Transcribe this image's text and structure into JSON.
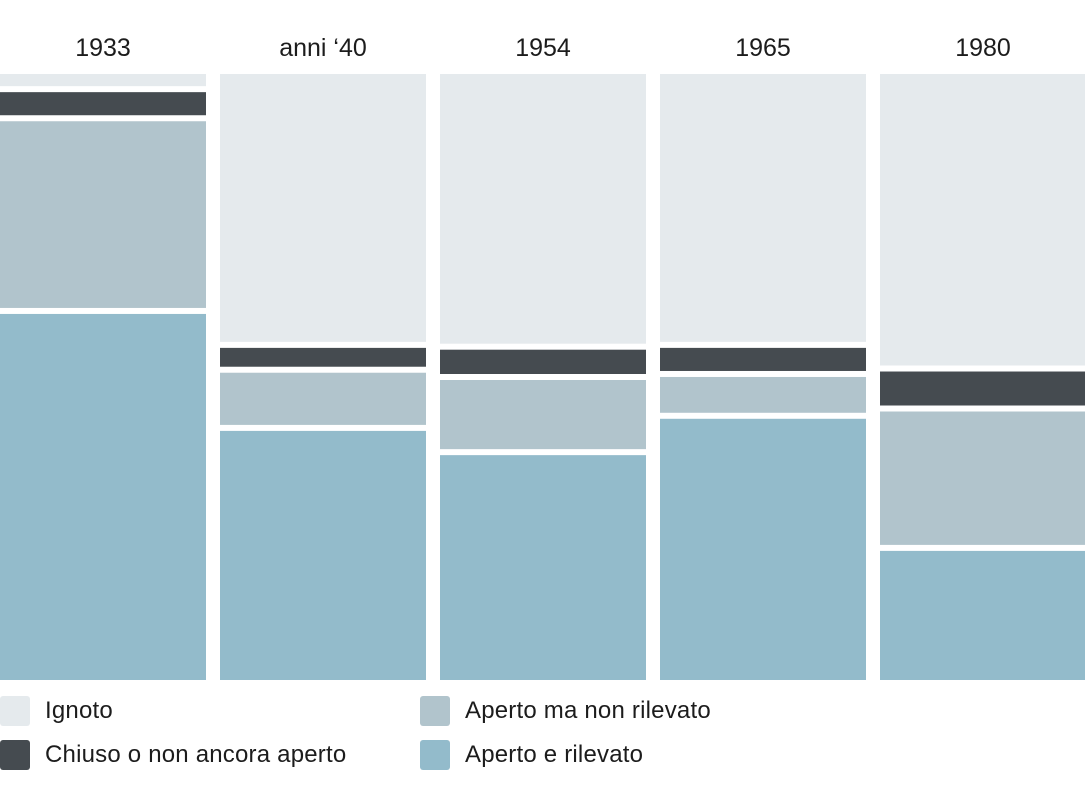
{
  "chart_data": {
    "type": "bar",
    "stacked": "percent",
    "categories": [
      "1933",
      "anni ‘40",
      "1954",
      "1965",
      "1980"
    ],
    "series": [
      {
        "name": "Aperto e rilevato",
        "color": "#93bbcb",
        "values": [
          60.9,
          41.6,
          37.6,
          43.6,
          21.8
        ]
      },
      {
        "name": "Aperto ma non rilevato",
        "color": "#b1c4cc",
        "values": [
          31.8,
          9.6,
          12.4,
          6.9,
          23.0
        ]
      },
      {
        "name": "Chiuso o non ancora aperto",
        "color": "#454b50",
        "values": [
          4.8,
          4.1,
          5.0,
          4.8,
          6.6
        ]
      },
      {
        "name": "Ignoto",
        "color": "#e5eaed",
        "values": [
          2.5,
          44.7,
          45.0,
          44.7,
          48.6
        ]
      }
    ],
    "legend": "bottom",
    "grid": false,
    "axes": false
  },
  "legend": {
    "col1": [
      "Ignoto",
      "Chiuso o non ancora aperto"
    ],
    "col2": [
      "Aperto ma non rilevato",
      "Aperto e rilevato"
    ]
  },
  "colors": {
    "ignoto": "#e5eaed",
    "chiuso": "#454b50",
    "aperto_non_rilevato": "#b1c4cc",
    "aperto_rilevato": "#93bbcb"
  }
}
